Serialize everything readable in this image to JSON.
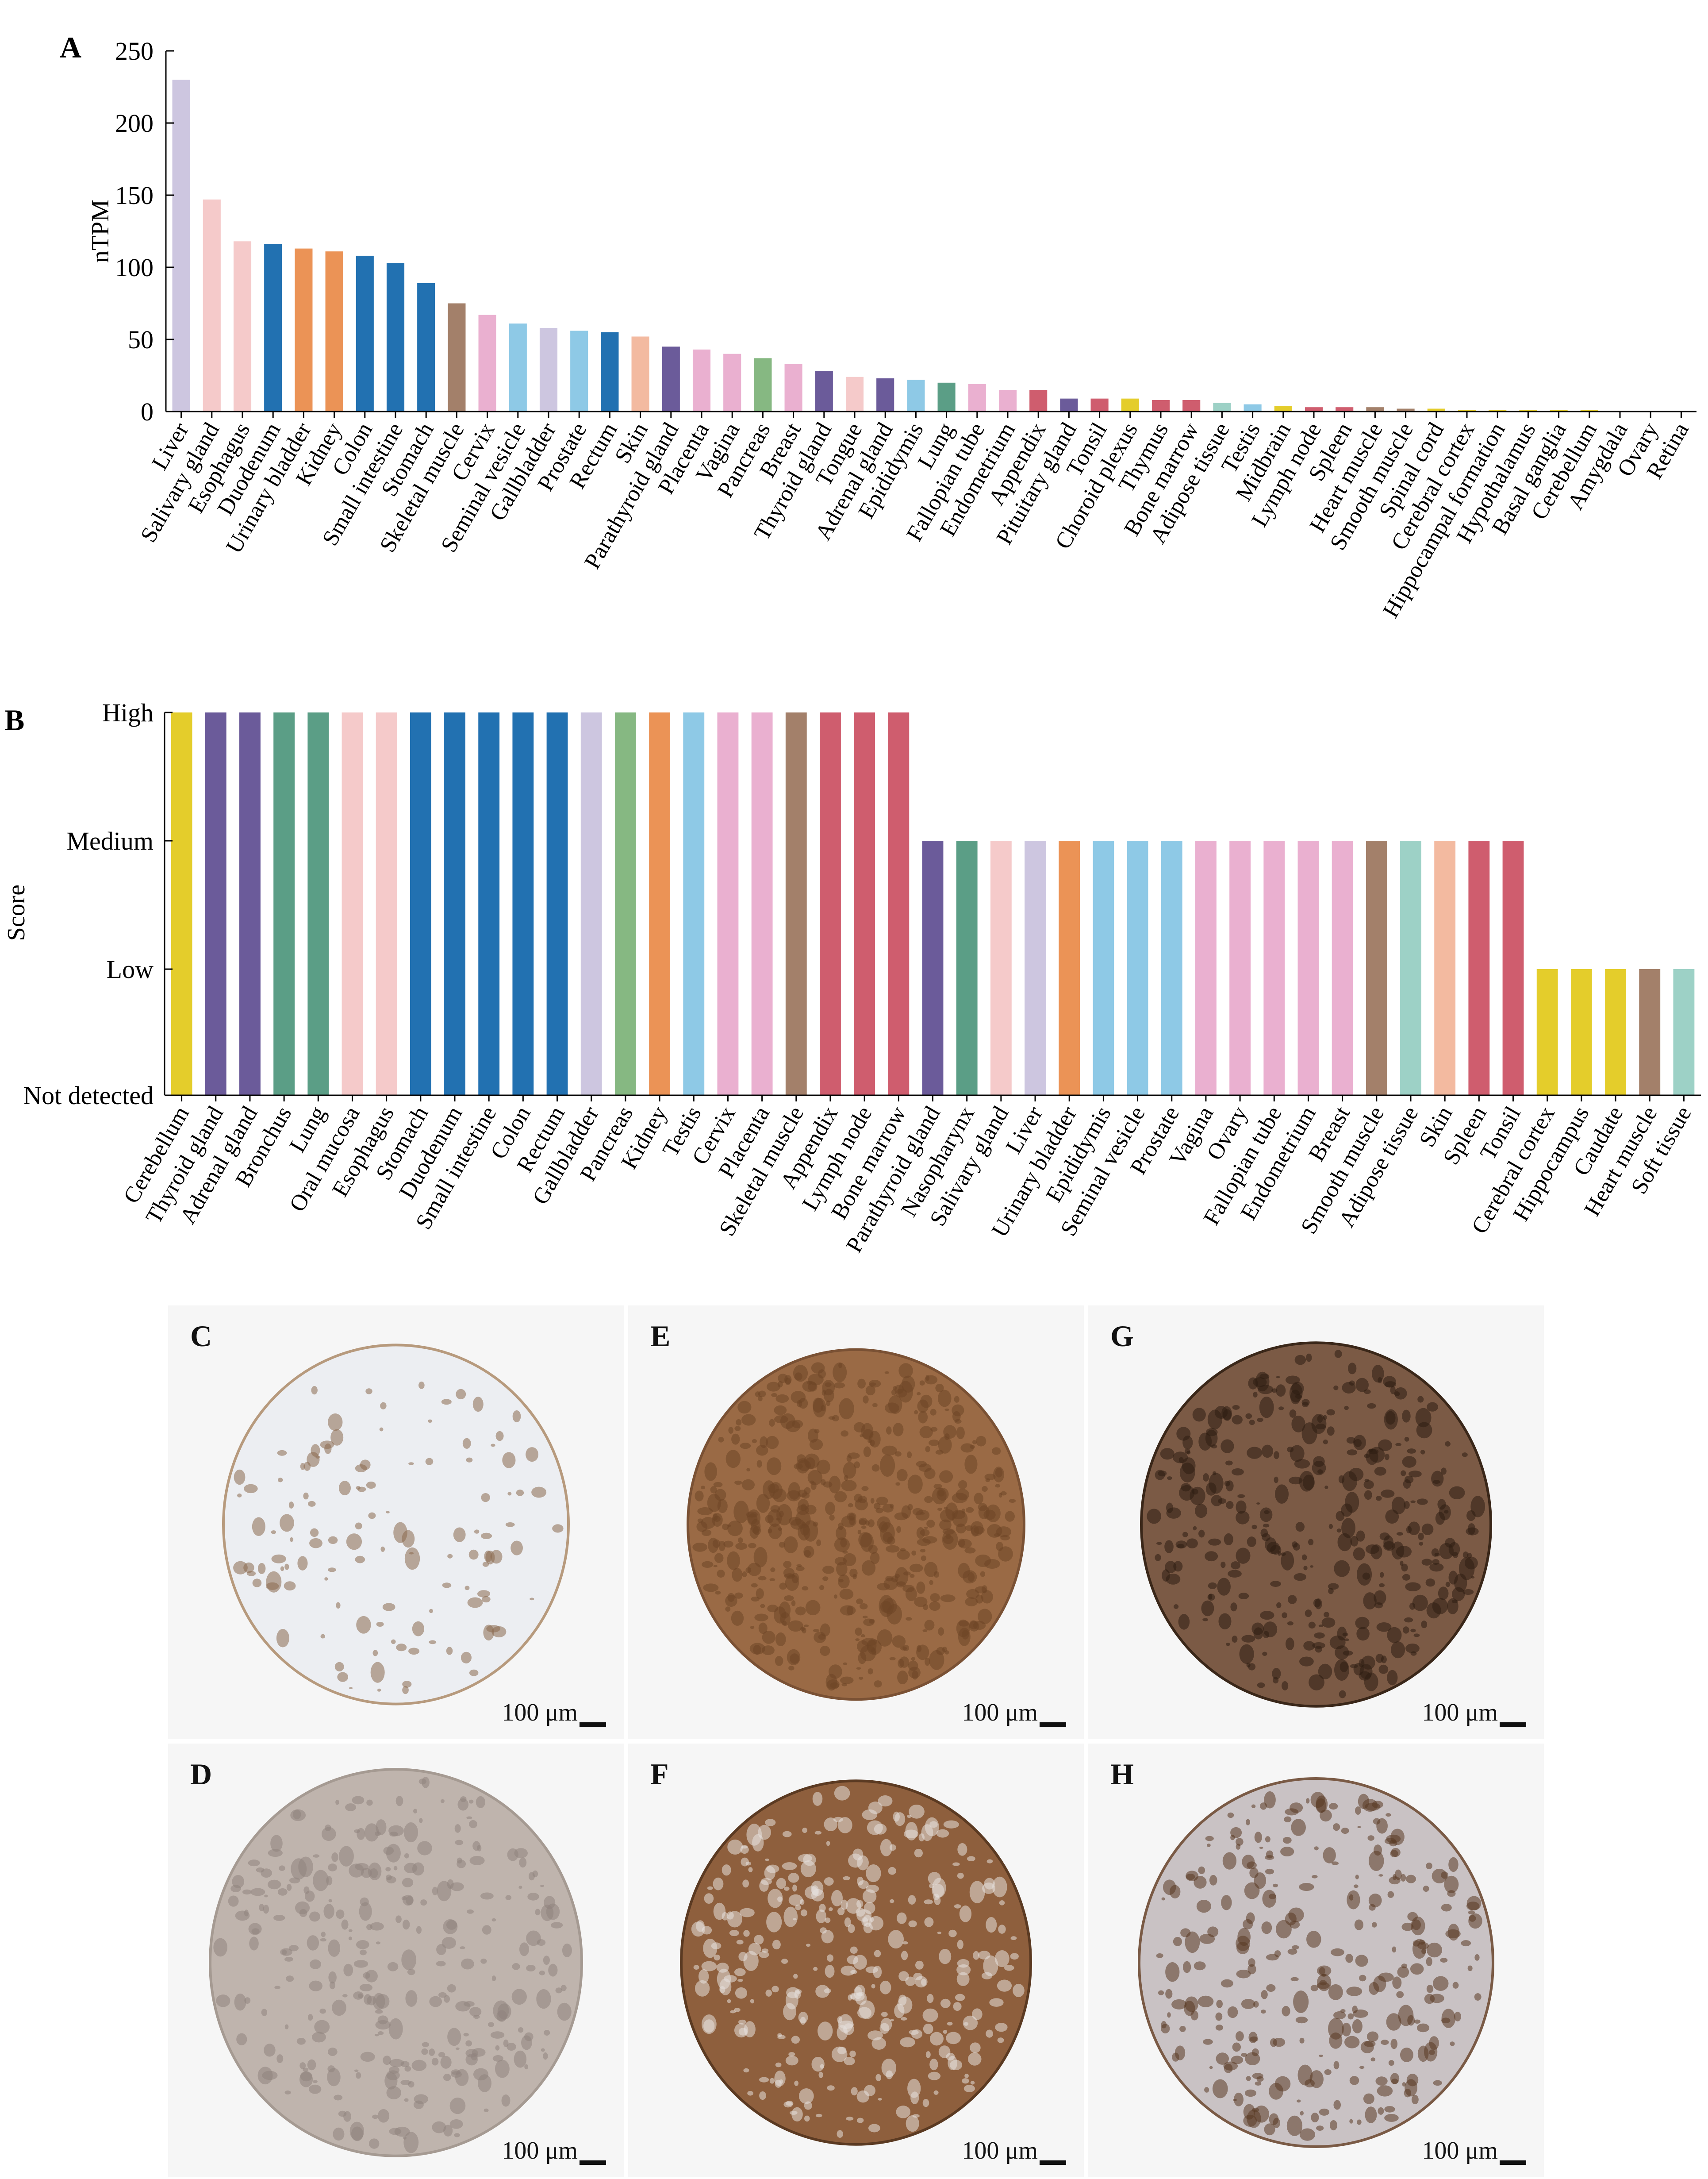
{
  "chart_data": [
    {
      "panel": "A",
      "type": "bar",
      "ylabel": "nTPM",
      "ylim": [
        0,
        250
      ],
      "yticks": [
        "0",
        "50",
        "100",
        "150",
        "200",
        "250"
      ],
      "grid": false,
      "categories": [
        "Liver",
        "Salivary gland",
        "Esophagus",
        "Duodenum",
        "Urinary bladder",
        "Kidney",
        "Colon",
        "Small intestine",
        "Stomach",
        "Skeletal muscle",
        "Cervix",
        "Seminal vesicle",
        "Gallbladder",
        "Prostate",
        "Rectum",
        "Skin",
        "Parathyroid gland",
        "Placenta",
        "Vagina",
        "Pancreas",
        "Breast",
        "Thyroid gland",
        "Tongue",
        "Adrenal gland",
        "Epididymis",
        "Lung",
        "Fallopian tube",
        "Endometrium",
        "Appendix",
        "Pituitary gland",
        "Tonsil",
        "Choroid plexus",
        "Thymus",
        "Bone marrow",
        "Adipose tissue",
        "Testis",
        "Midbrain",
        "Lymph node",
        "Spleen",
        "Heart muscle",
        "Smooth muscle",
        "Spinal cord",
        "Cerebral cortex",
        "Hippocampal formation",
        "Hypothalamus",
        "Basal ganglia",
        "Cerebellum",
        "Amygdala",
        "Ovary",
        "Retina"
      ],
      "values": [
        230,
        147,
        118,
        116,
        113,
        111,
        108,
        103,
        89,
        75,
        67,
        61,
        58,
        56,
        55,
        52,
        45,
        43,
        40,
        37,
        33,
        28,
        24,
        23,
        22,
        20,
        19,
        15,
        15,
        9,
        9,
        9,
        8,
        8,
        6,
        5,
        4,
        3,
        3,
        3,
        2,
        2,
        1,
        1,
        1,
        1,
        1,
        0.5,
        0.5,
        0.2
      ],
      "colors": [
        "#cdc6e0",
        "#f5caca",
        "#f5caca",
        "#2271b1",
        "#eb9356",
        "#eb9356",
        "#2271b1",
        "#2271b1",
        "#2271b1",
        "#a3806a",
        "#eab0d0",
        "#8ec9e6",
        "#cdc6e0",
        "#8ec9e6",
        "#2271b1",
        "#f3baa0",
        "#6b5b9a",
        "#eab0d0",
        "#eab0d0",
        "#86b882",
        "#eab0d0",
        "#6b5b9a",
        "#f5caca",
        "#6b5b9a",
        "#8ec9e6",
        "#5b9e86",
        "#eab0d0",
        "#eab0d0",
        "#cf5d6e",
        "#6b5b9a",
        "#cf5d6e",
        "#e4cd2b",
        "#cf5d6e",
        "#cf5d6e",
        "#9dd1c6",
        "#8ec9e6",
        "#e4cd2b",
        "#cf5d6e",
        "#cf5d6e",
        "#a3806a",
        "#a3806a",
        "#e4cd2b",
        "#e4cd2b",
        "#e4cd2b",
        "#e4cd2b",
        "#e4cd2b",
        "#e4cd2b",
        "#e4cd2b",
        "#eab0d0",
        "#e4cd2b"
      ]
    },
    {
      "panel": "B",
      "type": "bar",
      "ylabel": "Score",
      "ylevels": [
        "Not detected",
        "Low",
        "Medium",
        "High"
      ],
      "grid": false,
      "categories": [
        "Cerebellum",
        "Thyroid gland",
        "Adrenal gland",
        "Bronchus",
        "Lung",
        "Oral mucosa",
        "Esophagus",
        "Stomach",
        "Duodenum",
        "Small intestine",
        "Colon",
        "Rectum",
        "Gallbladder",
        "Pancreas",
        "Kidney",
        "Testis",
        "Cervix",
        "Placenta",
        "Skeletal muscle",
        "Appendix",
        "Lymph node",
        "Bone marrow",
        "Parathyroid gland",
        "Nasopharynx",
        "Salivary gland",
        "Liver",
        "Urinary bladder",
        "Epididymis",
        "Seminal vesicle",
        "Prostate",
        "Vagina",
        "Ovary",
        "Fallopian tube",
        "Endometrium",
        "Breast",
        "Smooth muscle",
        "Adipose tissue",
        "Skin",
        "Spleen",
        "Tonsil",
        "Cerebral cortex",
        "Hippocampus",
        "Caudate",
        "Heart muscle",
        "Soft tissue"
      ],
      "values": [
        3,
        3,
        3,
        3,
        3,
        3,
        3,
        3,
        3,
        3,
        3,
        3,
        3,
        3,
        3,
        3,
        3,
        3,
        3,
        3,
        3,
        3,
        2,
        2,
        2,
        2,
        2,
        2,
        2,
        2,
        2,
        2,
        2,
        2,
        2,
        2,
        2,
        2,
        2,
        2,
        1,
        1,
        1,
        1,
        1
      ],
      "colors": [
        "#e4cd2b",
        "#6b5b9a",
        "#6b5b9a",
        "#5b9e86",
        "#5b9e86",
        "#f5caca",
        "#f5caca",
        "#2271b1",
        "#2271b1",
        "#2271b1",
        "#2271b1",
        "#2271b1",
        "#cdc6e0",
        "#86b882",
        "#eb9356",
        "#8ec9e6",
        "#eab0d0",
        "#eab0d0",
        "#a3806a",
        "#cf5d6e",
        "#cf5d6e",
        "#cf5d6e",
        "#6b5b9a",
        "#5b9e86",
        "#f5caca",
        "#cdc6e0",
        "#eb9356",
        "#8ec9e6",
        "#8ec9e6",
        "#8ec9e6",
        "#eab0d0",
        "#eab0d0",
        "#eab0d0",
        "#eab0d0",
        "#eab0d0",
        "#a3806a",
        "#9dd1c6",
        "#f3baa0",
        "#cf5d6e",
        "#cf5d6e",
        "#e4cd2b",
        "#e4cd2b",
        "#e4cd2b",
        "#a3806a",
        "#9dd1c6"
      ]
    }
  ],
  "micrographs": [
    {
      "letter": "C",
      "scale": "100 μm",
      "style": "sparse-tissue"
    },
    {
      "letter": "E",
      "scale": "100 μm",
      "style": "dense-brown"
    },
    {
      "letter": "G",
      "scale": "100 μm",
      "style": "glandular-dark"
    },
    {
      "letter": "D",
      "scale": "100 μm",
      "style": "pale-grey"
    },
    {
      "letter": "F",
      "scale": "100 μm",
      "style": "tubular-brown"
    },
    {
      "letter": "H",
      "scale": "100 μm",
      "style": "colon-mixed"
    }
  ]
}
